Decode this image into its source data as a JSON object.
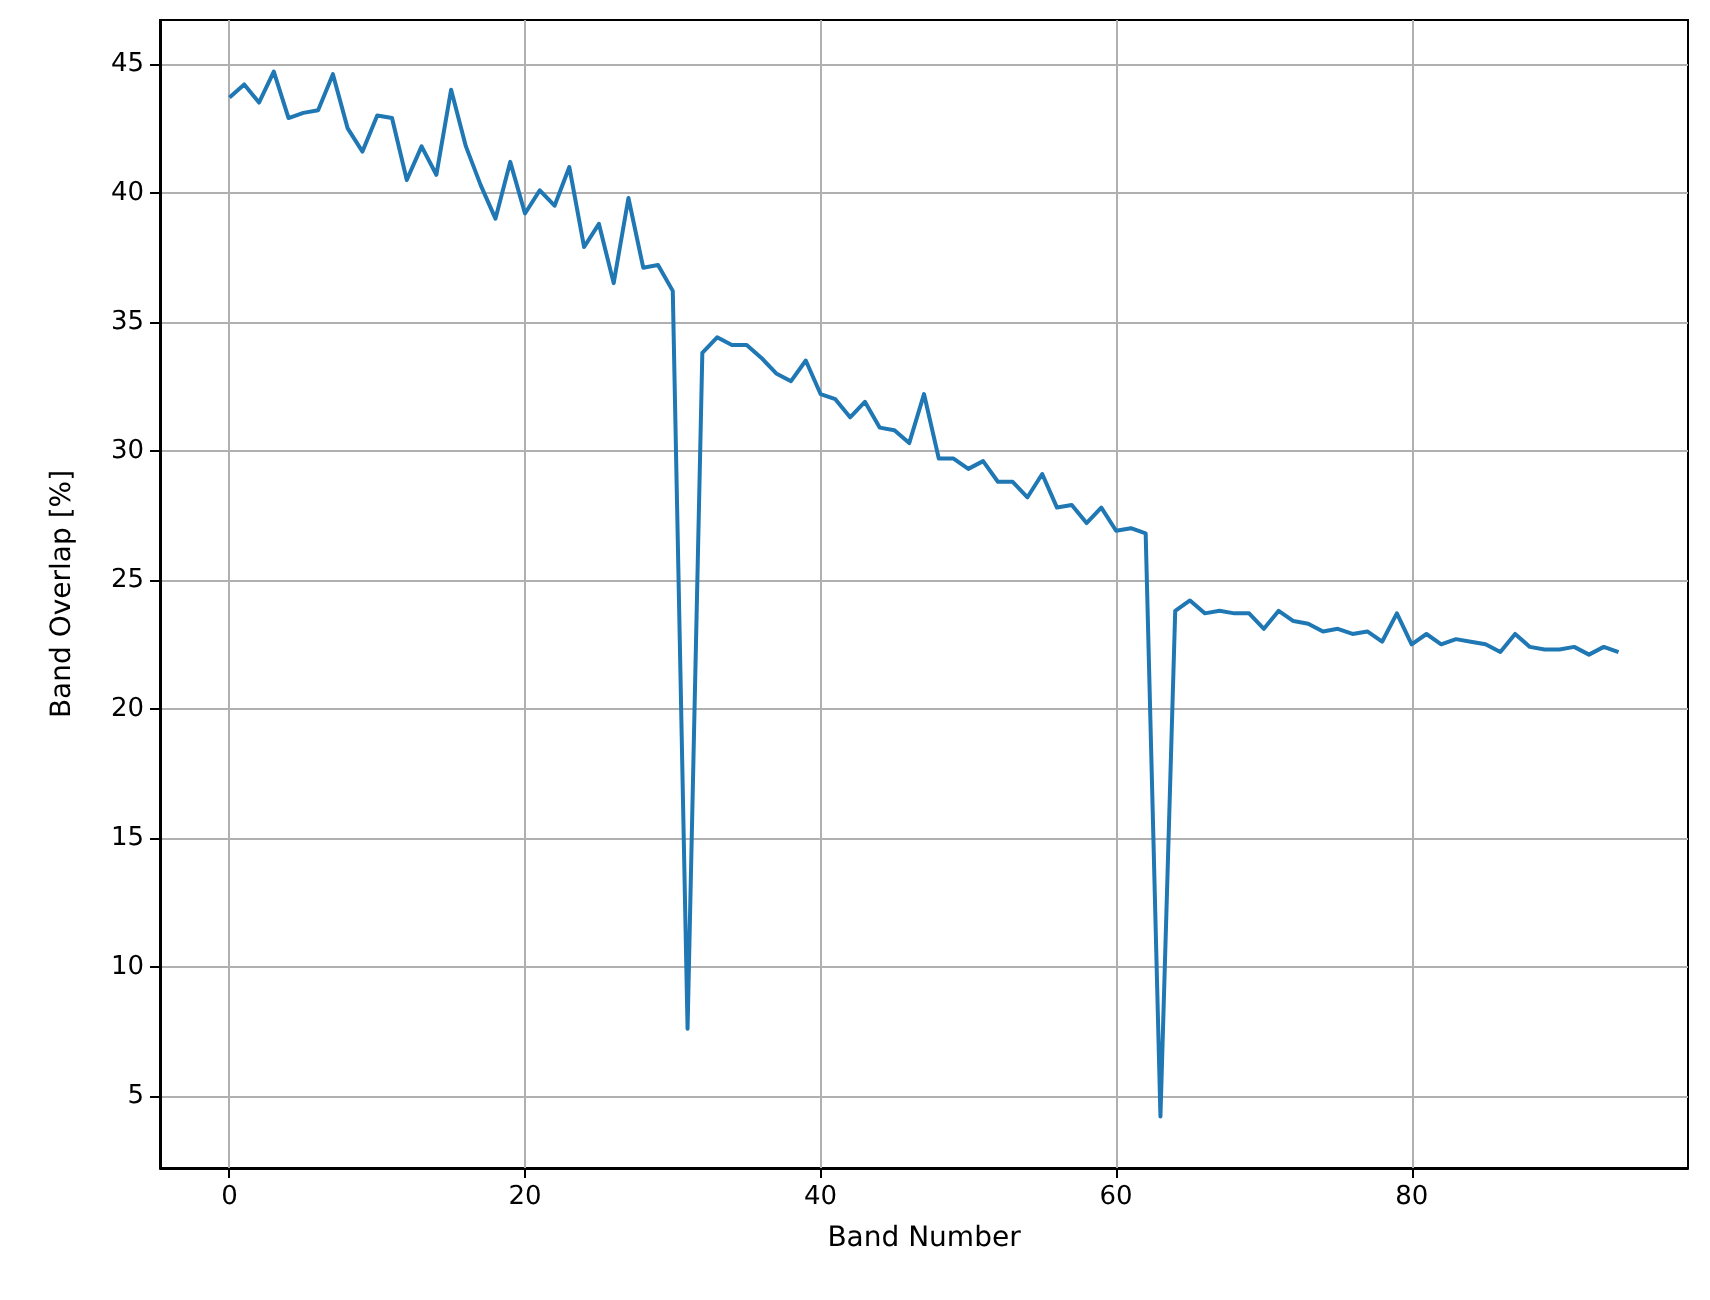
{
  "chart_data": {
    "type": "line",
    "xlabel": "Band Number",
    "ylabel": "Band Overlap [%]",
    "x": [
      0,
      1,
      2,
      3,
      4,
      5,
      6,
      7,
      8,
      9,
      10,
      11,
      12,
      13,
      14,
      15,
      16,
      17,
      18,
      19,
      20,
      21,
      22,
      23,
      24,
      25,
      26,
      27,
      28,
      29,
      30,
      31,
      32,
      33,
      34,
      35,
      36,
      37,
      38,
      39,
      40,
      41,
      42,
      43,
      44,
      45,
      46,
      47,
      48,
      49,
      50,
      51,
      52,
      53,
      54,
      55,
      56,
      57,
      58,
      59,
      60,
      61,
      62,
      63,
      64,
      65,
      66,
      67,
      68,
      69,
      70,
      71,
      72,
      73,
      74,
      75,
      76,
      77,
      78,
      79,
      80,
      81,
      82,
      83,
      84,
      85,
      86,
      87,
      88,
      89,
      90,
      91,
      92,
      93,
      94
    ],
    "series": [
      {
        "color": "#1f77b4",
        "values": [
          43.7,
          44.2,
          43.5,
          44.7,
          42.9,
          43.1,
          43.2,
          44.6,
          42.5,
          41.6,
          43.0,
          42.9,
          40.5,
          41.8,
          40.7,
          44.0,
          41.8,
          40.3,
          39.0,
          41.2,
          39.2,
          40.1,
          39.5,
          41.0,
          37.9,
          38.8,
          36.5,
          39.8,
          37.1,
          37.2,
          36.2,
          7.6,
          33.8,
          34.4,
          34.1,
          34.1,
          33.6,
          33.0,
          32.7,
          33.5,
          32.2,
          32.0,
          31.3,
          31.9,
          30.9,
          30.8,
          30.3,
          32.2,
          29.7,
          29.7,
          29.3,
          29.6,
          28.8,
          28.8,
          28.2,
          29.1,
          27.8,
          27.9,
          27.2,
          27.8,
          26.9,
          27.0,
          26.8,
          4.2,
          23.8,
          24.2,
          23.7,
          23.8,
          23.7,
          23.7,
          23.1,
          23.8,
          23.4,
          23.3,
          23.0,
          23.1,
          22.9,
          23.0,
          22.6,
          23.7,
          22.5,
          22.9,
          22.5,
          22.7,
          22.6,
          22.5,
          22.2,
          22.9,
          22.4,
          22.3,
          22.3,
          22.4,
          22.1,
          22.4,
          22.2
        ]
      }
    ],
    "xlim": [
      -4.7,
      98.7
    ],
    "ylim": [
      2.2,
      46.7
    ],
    "xticks": [
      0,
      20,
      40,
      60,
      80
    ],
    "yticks": [
      5,
      10,
      15,
      20,
      25,
      30,
      35,
      40,
      45
    ],
    "grid": true,
    "marker": "none",
    "line_style": "solid"
  }
}
